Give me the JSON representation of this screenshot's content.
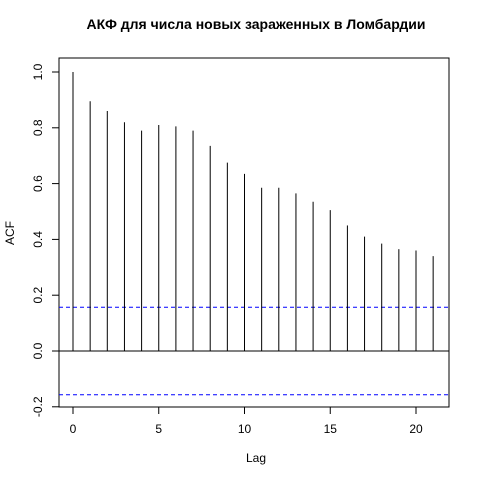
{
  "chart_data": {
    "type": "bar",
    "title": "АКФ для числа новых зараженных в Ломбардии",
    "xlabel": "Lag",
    "ylabel": "ACF",
    "xlim": [
      -1,
      22
    ],
    "ylim": [
      -0.2,
      1.0
    ],
    "x_ticks": [
      "0",
      "5",
      "10",
      "15",
      "20"
    ],
    "y_ticks": [
      "-0.2",
      "0.0",
      "0.2",
      "0.4",
      "0.6",
      "0.8",
      "1.0"
    ],
    "lags": [
      0,
      1,
      2,
      3,
      4,
      5,
      6,
      7,
      8,
      9,
      10,
      11,
      12,
      13,
      14,
      15,
      16,
      17,
      18,
      19,
      20,
      21
    ],
    "values": [
      1.0,
      0.895,
      0.86,
      0.82,
      0.79,
      0.81,
      0.805,
      0.79,
      0.735,
      0.675,
      0.635,
      0.585,
      0.585,
      0.565,
      0.535,
      0.505,
      0.45,
      0.41,
      0.385,
      0.365,
      0.36,
      0.34
    ],
    "confidence_bound": 0.157,
    "colors": {
      "spike": "#000000",
      "ci_line": "#0000ff",
      "zero_line": "#000000",
      "frame": "#000000"
    }
  }
}
